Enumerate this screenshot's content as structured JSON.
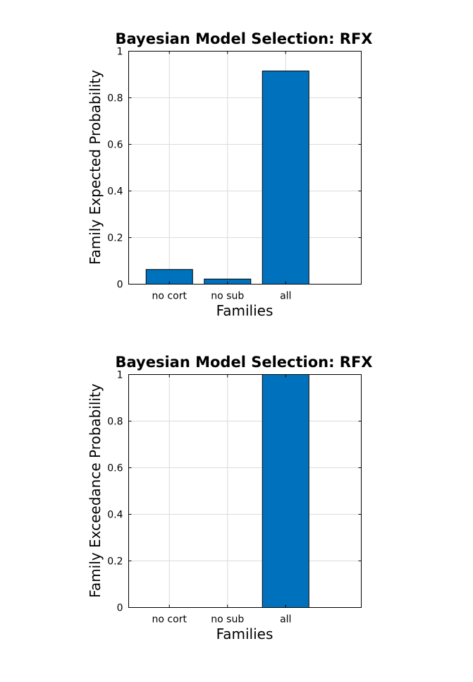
{
  "chart_data": [
    {
      "type": "bar",
      "title": "Bayesian Model Selection: RFX",
      "xlabel": "Families",
      "ylabel": "Family Expected Probability",
      "categories": [
        "no cort",
        "no sub",
        "all"
      ],
      "values": [
        0.063,
        0.022,
        0.915
      ],
      "ylim": [
        0,
        1
      ],
      "xlim": [
        0.3,
        4.3
      ],
      "yticks": [
        0,
        0.2,
        0.4,
        0.6,
        0.8,
        1
      ],
      "ytick_labels": [
        "0",
        "0.2",
        "0.4",
        "0.6",
        "0.8",
        "1"
      ],
      "grid": true,
      "bar_color": "#0072BD"
    },
    {
      "type": "bar",
      "title": "Bayesian Model Selection: RFX",
      "xlabel": "Families",
      "ylabel": "Family Exceedance Probability",
      "categories": [
        "no cort",
        "no sub",
        "all"
      ],
      "values": [
        0.0,
        0.0,
        1.0
      ],
      "ylim": [
        0,
        1
      ],
      "xlim": [
        0.3,
        4.3
      ],
      "yticks": [
        0,
        0.2,
        0.4,
        0.6,
        0.8,
        1
      ],
      "ytick_labels": [
        "0",
        "0.2",
        "0.4",
        "0.6",
        "0.8",
        "1"
      ],
      "grid": true,
      "bar_color": "#0072BD"
    }
  ]
}
